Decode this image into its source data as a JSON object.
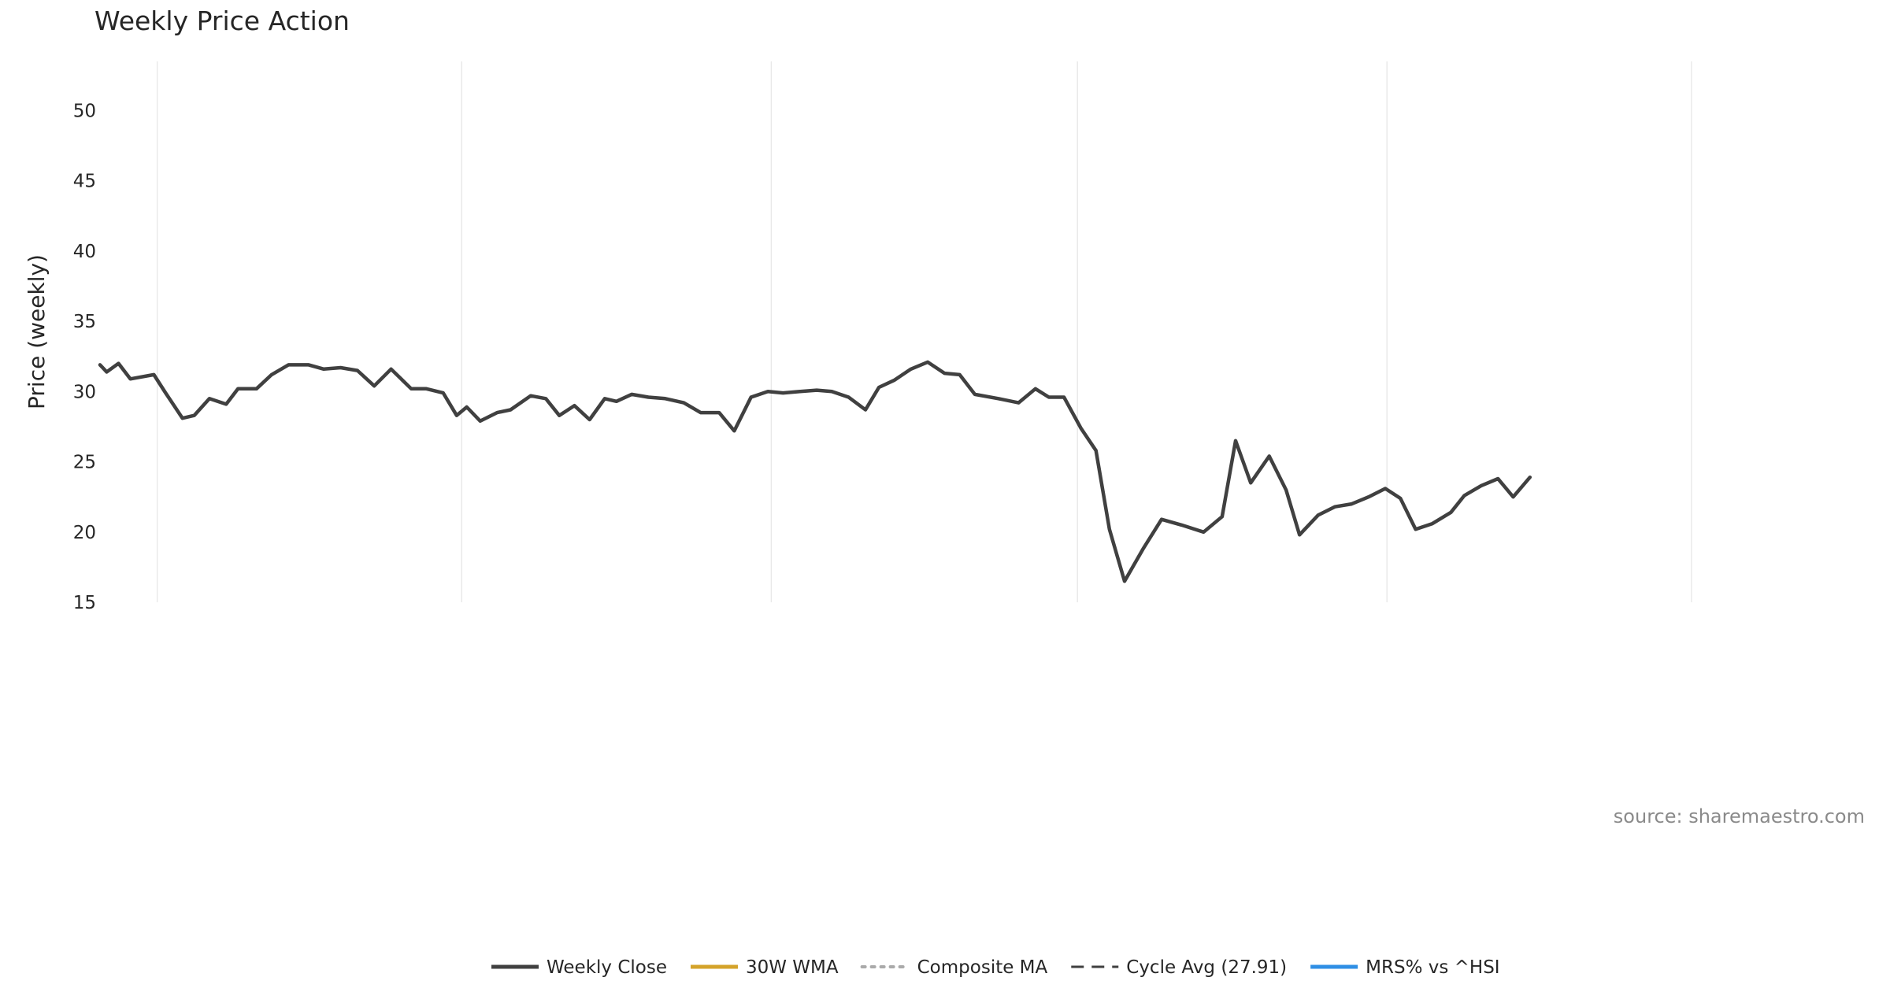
{
  "chart_data": [
    {
      "panel": "price",
      "type": "line",
      "title": "Weekly Price Action",
      "xlabel": "",
      "ylabel": "Price (weekly)",
      "xlim": [
        "2022-11-28",
        "2025-10-27"
      ],
      "ylim": [
        15,
        53.5
      ],
      "yticks": [
        15,
        20,
        25,
        30,
        35,
        40,
        45,
        50
      ],
      "x_gridlines": [
        "2023-01-01",
        "2023-07-01",
        "2024-01-01",
        "2024-07-01",
        "2025-01-01",
        "2025-07-01"
      ],
      "series": [
        {
          "name": "Weekly Close",
          "color": "#404040",
          "points": [
            [
              "2022-11-28",
              31.9
            ],
            [
              "2022-12-02",
              31.4
            ],
            [
              "2022-12-09",
              32.0
            ],
            [
              "2022-12-16",
              30.9
            ],
            [
              "2022-12-30",
              31.2
            ],
            [
              "2023-01-06",
              29.9
            ],
            [
              "2023-01-16",
              28.1
            ],
            [
              "2023-01-23",
              28.3
            ],
            [
              "2023-02-01",
              29.5
            ],
            [
              "2023-02-11",
              29.1
            ],
            [
              "2023-02-18",
              30.2
            ],
            [
              "2023-03-01",
              30.2
            ],
            [
              "2023-03-10",
              31.2
            ],
            [
              "2023-03-20",
              31.9
            ],
            [
              "2023-04-01",
              31.9
            ],
            [
              "2023-04-10",
              31.6
            ],
            [
              "2023-04-20",
              31.7
            ],
            [
              "2023-04-30",
              31.5
            ],
            [
              "2023-05-10",
              30.4
            ],
            [
              "2023-05-20",
              31.6
            ],
            [
              "2023-06-01",
              30.2
            ],
            [
              "2023-06-10",
              30.2
            ],
            [
              "2023-06-20",
              29.9
            ],
            [
              "2023-06-28",
              28.3
            ],
            [
              "2023-07-04",
              28.9
            ],
            [
              "2023-07-12",
              27.9
            ],
            [
              "2023-07-22",
              28.5
            ],
            [
              "2023-07-30",
              28.7
            ],
            [
              "2023-08-11",
              29.7
            ],
            [
              "2023-08-20",
              29.5
            ],
            [
              "2023-08-28",
              28.3
            ],
            [
              "2023-09-06",
              29.0
            ],
            [
              "2023-09-15",
              28.0
            ],
            [
              "2023-09-24",
              29.5
            ],
            [
              "2023-10-01",
              29.3
            ],
            [
              "2023-10-10",
              29.8
            ],
            [
              "2023-10-20",
              29.6
            ],
            [
              "2023-10-30",
              29.5
            ],
            [
              "2023-11-10",
              29.2
            ],
            [
              "2023-11-20",
              28.5
            ],
            [
              "2023-12-01",
              28.5
            ],
            [
              "2023-12-10",
              27.2
            ],
            [
              "2023-12-20",
              29.6
            ],
            [
              "2023-12-30",
              30.0
            ],
            [
              "2024-01-08",
              29.9
            ],
            [
              "2024-01-18",
              30.0
            ],
            [
              "2024-01-28",
              30.1
            ],
            [
              "2024-02-06",
              30.0
            ],
            [
              "2024-02-16",
              29.6
            ],
            [
              "2024-02-26",
              28.7
            ],
            [
              "2024-03-05",
              30.3
            ],
            [
              "2024-03-14",
              30.8
            ],
            [
              "2024-03-24",
              31.6
            ],
            [
              "2024-04-03",
              32.1
            ],
            [
              "2024-04-13",
              31.3
            ],
            [
              "2024-04-22",
              31.2
            ],
            [
              "2024-05-01",
              29.8
            ],
            [
              "2024-05-15",
              29.5
            ],
            [
              "2024-05-27",
              29.2
            ],
            [
              "2024-06-06",
              30.2
            ],
            [
              "2024-06-14",
              29.6
            ],
            [
              "2024-06-23",
              29.6
            ],
            [
              "2024-07-03",
              27.4
            ],
            [
              "2024-07-12",
              25.8
            ],
            [
              "2024-07-20",
              20.2
            ],
            [
              "2024-07-29",
              16.5
            ],
            [
              "2024-08-09",
              18.8
            ],
            [
              "2024-08-20",
              20.9
            ],
            [
              "2024-09-01",
              20.5
            ],
            [
              "2024-09-14",
              20.0
            ],
            [
              "2024-09-25",
              21.1
            ],
            [
              "2024-10-03",
              26.5
            ],
            [
              "2024-10-12",
              23.5
            ],
            [
              "2024-10-23",
              25.4
            ],
            [
              "2024-11-02",
              23.0
            ],
            [
              "2024-11-10",
              19.8
            ],
            [
              "2024-11-21",
              21.2
            ],
            [
              "2024-12-01",
              21.8
            ],
            [
              "2024-12-11",
              22.0
            ],
            [
              "2024-12-21",
              22.5
            ],
            [
              "2024-12-31",
              23.1
            ],
            [
              "2025-01-09",
              22.4
            ],
            [
              "2025-01-18",
              20.2
            ],
            [
              "2025-01-28",
              20.6
            ],
            [
              "2025-02-08",
              21.4
            ],
            [
              "2025-02-16",
              22.6
            ],
            [
              "2025-02-26",
              23.3
            ],
            [
              "2025-03-08",
              23.8
            ],
            [
              "2025-03-17",
              22.5
            ],
            [
              "2025-03-27",
              23.9
            ]
          ]
        }
      ]
    }
  ],
  "legend": {
    "items": [
      {
        "label": "Weekly Close",
        "style": "solid",
        "color": "#404040"
      },
      {
        "label": "30W WMA",
        "style": "solid",
        "color": "#d4a32a"
      },
      {
        "label": "Composite MA",
        "style": "dotted",
        "color": "#aaaaaa"
      },
      {
        "label": "Cycle Avg (27.91)",
        "style": "dashed",
        "color": "#404040"
      },
      {
        "label": "MRS% vs ^HSI",
        "style": "solid",
        "color": "#2f8fe5"
      }
    ]
  },
  "source_note": "source: sharemaestro.com"
}
